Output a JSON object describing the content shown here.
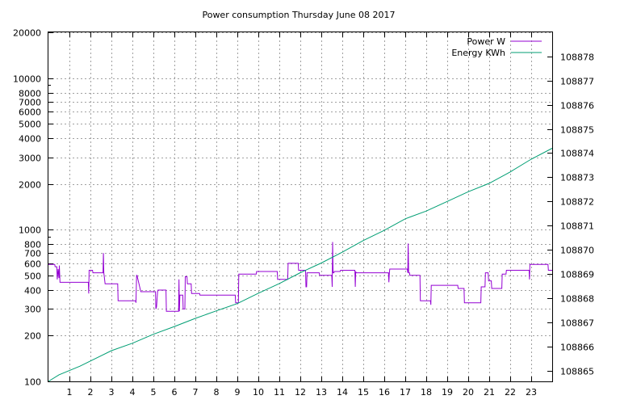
{
  "chart_data": {
    "type": "line",
    "title": "Power consumption Thursday June 08 2017",
    "xlabel": "",
    "ylabel": "",
    "y2label": "",
    "xlim": [
      0,
      24
    ],
    "ylim": [
      100,
      20000
    ],
    "yscale": "log",
    "y2lim": [
      108864.55,
      108879
    ],
    "x_ticks": [
      1,
      2,
      3,
      4,
      5,
      6,
      7,
      8,
      9,
      10,
      11,
      12,
      13,
      14,
      15,
      16,
      17,
      18,
      19,
      20,
      21,
      22,
      23
    ],
    "y_tick_labels": [
      "100",
      "200",
      "300",
      "400",
      "500",
      "600",
      "700",
      "800",
      "1000",
      "2000",
      "3000",
      "4000",
      "5000",
      "6000",
      "7000",
      "8000",
      "10000",
      "20000"
    ],
    "y2_ticks": [
      108865,
      108866,
      108867,
      108868,
      108869,
      108870,
      108871,
      108872,
      108873,
      108874,
      108875,
      108876,
      108877,
      108878
    ],
    "grid": true,
    "legend_position": "top-right",
    "colors": {
      "power": "#9400d3",
      "energy": "#009e73"
    },
    "series": [
      {
        "name": "Power W",
        "axis": "left",
        "x": [
          0,
          0.3,
          0.32,
          0.4,
          0.42,
          0.46,
          0.5,
          0.52,
          0.55,
          0.57,
          1.9,
          1.92,
          1.94,
          2.1,
          2.12,
          2.6,
          2.62,
          2.64,
          2.7,
          3.3,
          3.32,
          4.15,
          4.17,
          4.2,
          4.22,
          4.4,
          4.42,
          5.1,
          5.12,
          5.15,
          5.2,
          5.22,
          5.6,
          5.62,
          6.2,
          6.22,
          6.24,
          6.26,
          6.4,
          6.42,
          6.5,
          6.52,
          6.6,
          6.62,
          6.8,
          6.82,
          7.2,
          7.22,
          8.9,
          8.92,
          9.05,
          9.07,
          9.9,
          9.92,
          10.9,
          10.92,
          11.4,
          11.42,
          11.9,
          11.92,
          12.25,
          12.27,
          12.3,
          12.32,
          12.9,
          12.92,
          13.5,
          13.52,
          13.54,
          13.56,
          13.6,
          13.62,
          13.9,
          13.92,
          14.6,
          14.62,
          14.64,
          14.66,
          14.8,
          14.82,
          16.2,
          16.22,
          16.24,
          16.26,
          16.4,
          16.42,
          17.1,
          17.12,
          17.14,
          17.16,
          17.2,
          17.22,
          17.7,
          17.72,
          18.2,
          18.22,
          18.24,
          18.26,
          19.5,
          19.52,
          19.8,
          19.82,
          20.6,
          20.62,
          20.8,
          20.82,
          20.95,
          20.97,
          21.1,
          21.12,
          21.6,
          21.62,
          21.8,
          21.82,
          22.9,
          22.92,
          22.94,
          22.96,
          23.8,
          23.82,
          24
        ],
        "y": [
          590,
          590,
          570,
          570,
          470,
          550,
          480,
          580,
          450,
          450,
          450,
          380,
          540,
          540,
          520,
          520,
          700,
          520,
          440,
          440,
          340,
          340,
          330,
          500,
          500,
          390,
          390,
          390,
          300,
          310,
          390,
          400,
          400,
          290,
          290,
          470,
          290,
          370,
          370,
          300,
          300,
          490,
          490,
          440,
          440,
          380,
          380,
          370,
          370,
          330,
          330,
          510,
          510,
          530,
          530,
          470,
          470,
          600,
          600,
          540,
          540,
          420,
          420,
          520,
          520,
          500,
          500,
          420,
          830,
          520,
          520,
          530,
          530,
          540,
          540,
          420,
          530,
          520,
          520,
          520,
          520,
          450,
          510,
          550,
          550,
          550,
          550,
          520,
          810,
          520,
          520,
          500,
          500,
          340,
          340,
          320,
          430,
          430,
          430,
          410,
          410,
          330,
          330,
          420,
          420,
          520,
          520,
          460,
          460,
          410,
          410,
          510,
          510,
          540,
          540,
          470,
          590,
          590,
          590,
          540,
          540
        ]
      },
      {
        "name": "Energy KWh",
        "axis": "right",
        "x": [
          0,
          0.5,
          1.5,
          3,
          4,
          5,
          6,
          7,
          8,
          9,
          10,
          11,
          12,
          13,
          14,
          15,
          16,
          17,
          18,
          19,
          20,
          21,
          22,
          23,
          24
        ],
        "y": [
          108864.55,
          108864.82,
          108865.18,
          108865.82,
          108866.13,
          108866.5,
          108866.82,
          108867.16,
          108867.47,
          108867.77,
          108868.2,
          108868.6,
          108869.05,
          108869.45,
          108869.9,
          108870.38,
          108870.8,
          108871.28,
          108871.6,
          108872.0,
          108872.4,
          108872.75,
          108873.22,
          108873.75,
          108874.2
        ]
      }
    ]
  }
}
